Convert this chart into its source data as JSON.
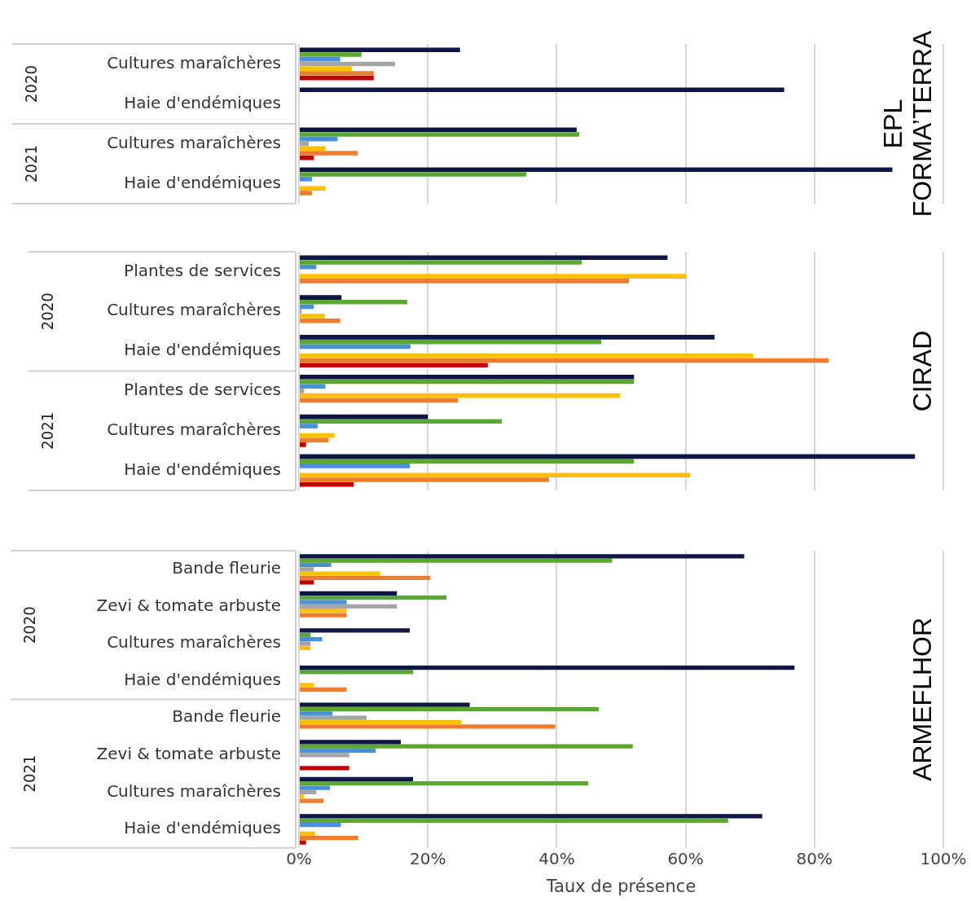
{
  "chart_data": [
    {
      "type": "bar",
      "orientation": "horizontal",
      "title": "EPL FORMA’TERRA",
      "categories": [
        "Cultures maraîchères",
        "Haie d'endémiques",
        "Cultures maraîchères",
        "Haie d'endémiques"
      ],
      "annotations": [
        "2020",
        "2021"
      ],
      "xlim": [
        0,
        100
      ],
      "xticks": [
        0,
        20,
        40,
        60,
        80,
        100
      ],
      "tick_labels": "y",
      "grid": "x",
      "legend": false,
      "series": [
        {
          "color": "#0d1645",
          "values": [
            25.0,
            75.3,
            43.1,
            92.1
          ]
        },
        {
          "color": "#5aa831",
          "values": [
            9.7,
            0,
            43.5,
            35.3
          ]
        },
        {
          "color": "#4a90d9",
          "values": [
            6.4,
            0,
            6.0,
            2.0
          ]
        },
        {
          "color": "#a5a5a5",
          "values": [
            14.9,
            0,
            1.5,
            0
          ]
        },
        {
          "color": "#ffc000",
          "values": [
            8.2,
            0,
            4.1,
            4.1
          ]
        },
        {
          "color": "#ed7d31",
          "values": [
            11.6,
            0,
            9.1,
            2.0
          ]
        },
        {
          "color": "#c00000",
          "values": [
            11.6,
            0,
            2.3,
            0
          ]
        }
      ]
    },
    {
      "type": "bar",
      "orientation": "horizontal",
      "title": "CIRAD",
      "categories": [
        "Plantes de services",
        "Cultures maraîchères",
        "Haie d'endémiques",
        "Plantes de services",
        "Cultures maraîchères",
        "Haie d'endémiques"
      ],
      "annotations": [
        "2020",
        "2021"
      ],
      "xlim": [
        0,
        100
      ],
      "xticks": [
        0,
        20,
        40,
        60,
        80,
        100
      ],
      "tick_labels": "y",
      "grid": "x",
      "legend": false,
      "series": [
        {
          "color": "#0d1645",
          "values": [
            57.2,
            6.6,
            64.5,
            52.0,
            20.0,
            95.6
          ]
        },
        {
          "color": "#5aa831",
          "values": [
            43.9,
            16.8,
            46.9,
            52.0,
            31.5,
            52.0
          ]
        },
        {
          "color": "#4a90d9",
          "values": [
            2.7,
            2.3,
            17.3,
            4.1,
            2.9,
            17.2
          ]
        },
        {
          "color": "#a5a5a5",
          "values": [
            0,
            0.4,
            0,
            0.8,
            0,
            0
          ]
        },
        {
          "color": "#ffc000",
          "values": [
            60.1,
            4.0,
            70.5,
            49.8,
            5.5,
            60.7
          ]
        },
        {
          "color": "#ed7d31",
          "values": [
            51.2,
            6.4,
            82.2,
            24.7,
            4.6,
            38.8
          ]
        },
        {
          "color": "#c00000",
          "values": [
            0,
            0,
            29.3,
            0,
            1.1,
            8.5
          ]
        }
      ]
    },
    {
      "type": "bar",
      "orientation": "horizontal",
      "title": "ARMEFLHOR",
      "xlabel": "Taux de présence",
      "categories": [
        "Bande fleurie",
        "Zevi & tomate arbuste",
        "Cultures maraîchères",
        "Haie d'endémiques",
        "Bande fleurie",
        "Zevi & tomate arbuste",
        "Cultures maraîchères",
        "Haie d'endémiques"
      ],
      "annotations": [
        "2020",
        "2021"
      ],
      "xlim": [
        0,
        100
      ],
      "xticks": [
        {
          "value": 0,
          "label": "0%"
        },
        {
          "value": 20,
          "label": "20%"
        },
        {
          "value": 40,
          "label": "40%"
        },
        {
          "value": 60,
          "label": "60%"
        },
        {
          "value": 80,
          "label": "80%"
        },
        {
          "value": 100,
          "label": "100%"
        }
      ],
      "grid": "x",
      "legend": false,
      "series": [
        {
          "color": "#0d1645",
          "values": [
            69.1,
            15.2,
            17.2,
            76.9,
            26.5,
            15.8,
            17.7,
            71.9
          ]
        },
        {
          "color": "#5aa831",
          "values": [
            48.6,
            22.9,
            1.8,
            17.7,
            46.5,
            51.8,
            44.9,
            66.6
          ]
        },
        {
          "color": "#4a90d9",
          "values": [
            5.0,
            7.4,
            3.6,
            0,
            5.2,
            11.9,
            4.8,
            6.5
          ]
        },
        {
          "color": "#a5a5a5",
          "values": [
            2.3,
            15.2,
            1.8,
            0,
            10.5,
            7.8,
            2.7,
            0
          ]
        },
        {
          "color": "#ffc000",
          "values": [
            12.6,
            7.4,
            1.8,
            2.3,
            25.2,
            0,
            0.8,
            2.5
          ]
        },
        {
          "color": "#ed7d31",
          "values": [
            20.4,
            7.4,
            0,
            7.4,
            39.8,
            0,
            3.8,
            9.2
          ]
        },
        {
          "color": "#c00000",
          "values": [
            2.3,
            0,
            0,
            0,
            0,
            7.8,
            0,
            1.1
          ]
        }
      ]
    }
  ]
}
